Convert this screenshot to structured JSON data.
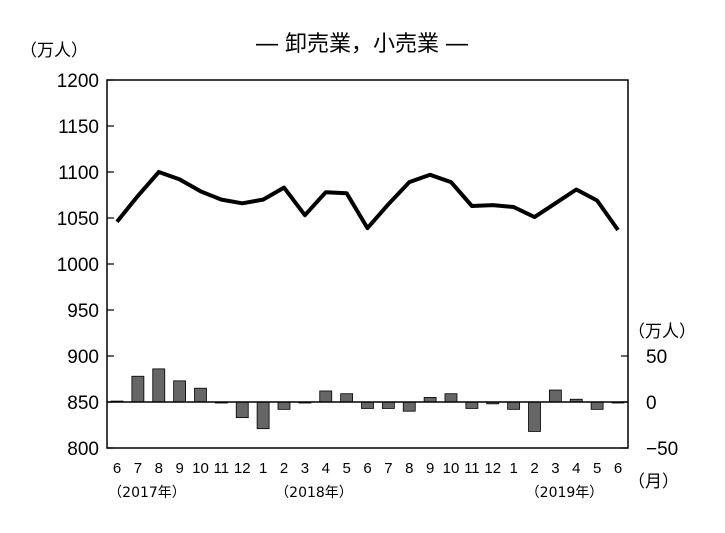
{
  "chart_data": {
    "type": "bar+line",
    "title": "― 卸売業，小売業 ―",
    "left_axis": {
      "unit_label": "（万人）",
      "ylim": [
        800,
        1200
      ],
      "ticks": [
        "1200",
        "1150",
        "1100",
        "1050",
        "1000",
        "950",
        "900",
        "850",
        "800"
      ]
    },
    "right_axis": {
      "unit_label": "（万人）",
      "ylim": [
        -50,
        50
      ],
      "ticks": [
        "50",
        "0",
        "−50"
      ]
    },
    "x_unit_label": "（月）",
    "categories": [
      "6",
      "7",
      "8",
      "9",
      "10",
      "11",
      "12",
      "1",
      "2",
      "3",
      "4",
      "5",
      "6",
      "7",
      "8",
      "9",
      "10",
      "11",
      "12",
      "1",
      "2",
      "3",
      "4",
      "5",
      "6"
    ],
    "year_labels": [
      {
        "index": 0,
        "label": "（2017年）"
      },
      {
        "index": 8,
        "label": "（2018年）"
      },
      {
        "index": 20,
        "label": "（2019年）"
      }
    ],
    "line_series": [
      1046,
      1074,
      1100,
      1092,
      1079,
      1070,
      1066,
      1070,
      1083,
      1053,
      1078,
      1077,
      1039,
      1065,
      1089,
      1097,
      1089,
      1063,
      1064,
      1062,
      1051,
      1066,
      1081,
      1069,
      1037
    ],
    "bar_series": [
      1,
      28,
      36,
      23,
      15,
      -1,
      -17,
      -29,
      -8,
      -1,
      12,
      9,
      -7,
      -7,
      -10,
      5,
      9,
      -7,
      -2,
      -8,
      -32,
      13,
      3,
      -8,
      -1
    ]
  }
}
